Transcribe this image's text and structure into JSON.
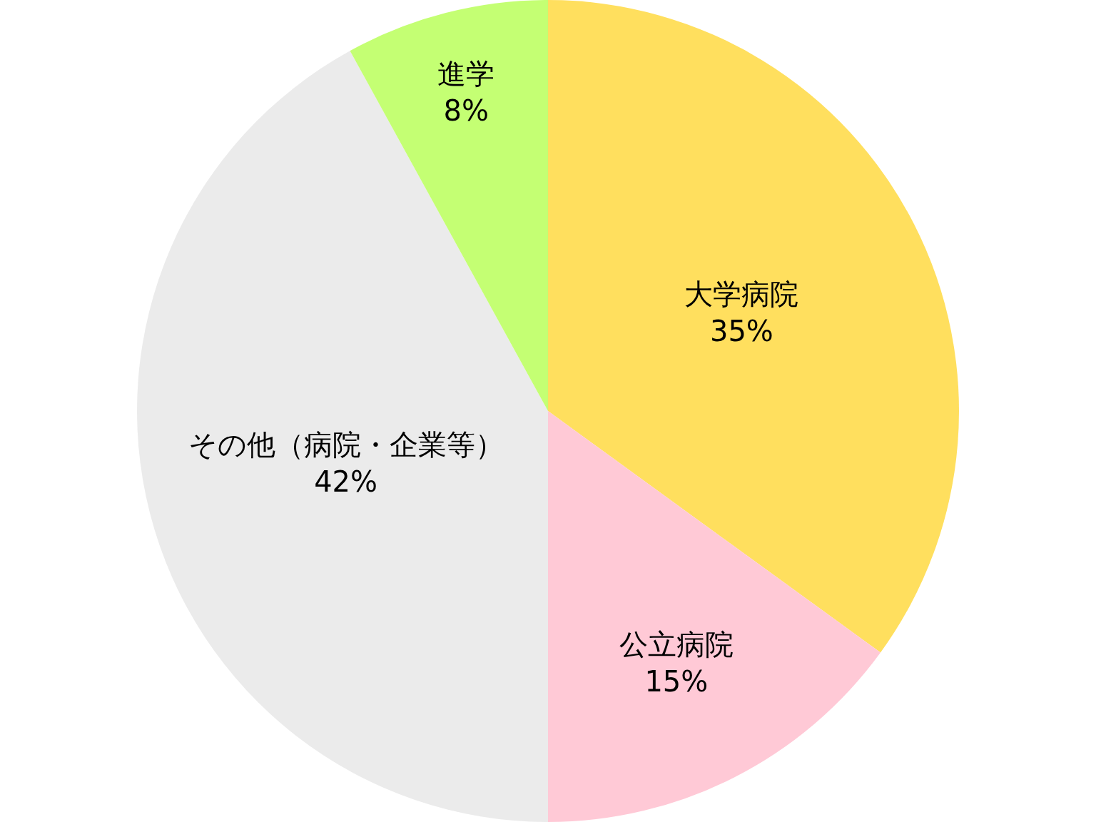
{
  "chart_data": {
    "type": "pie",
    "categories": [
      "大学病院",
      "公立病院",
      "その他（病院・企業等）",
      "進学"
    ],
    "values": [
      35,
      15,
      42,
      8
    ],
    "value_labels": [
      "35%",
      "15%",
      "42%",
      "8%"
    ],
    "colors": [
      "#ffdf5e",
      "#ffc9d6",
      "#ebebeb",
      "#c4ff73"
    ],
    "legend": false
  }
}
